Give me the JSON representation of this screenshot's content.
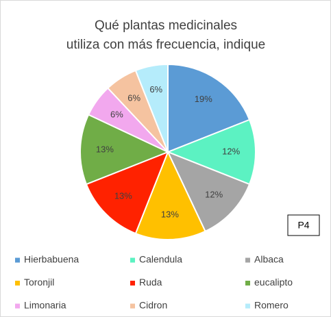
{
  "chart_data": {
    "type": "pie",
    "title": [
      "Qué plantas medicinales",
      "utiliza con más frecuencia, indique"
    ],
    "categories": [
      "Hierbabuena",
      "Calendula",
      "Albaca",
      "Toronjil",
      "Ruda",
      "eucalipto",
      "Limonaria",
      "Cidron",
      "Romero"
    ],
    "values": [
      19,
      12,
      12,
      13,
      13,
      13,
      6,
      6,
      6
    ],
    "value_labels": [
      "19%",
      "12%",
      "12%",
      "13%",
      "13%",
      "13%",
      "6%",
      "6%",
      "6%"
    ],
    "colors": [
      "#5b9bd5",
      "#5cf2c2",
      "#a5a5a5",
      "#ffc000",
      "#ff2200",
      "#70ad47",
      "#f2a8ee",
      "#f5c3a0",
      "#b5ecfb"
    ],
    "annotation": "P4",
    "legend": "bottom"
  }
}
